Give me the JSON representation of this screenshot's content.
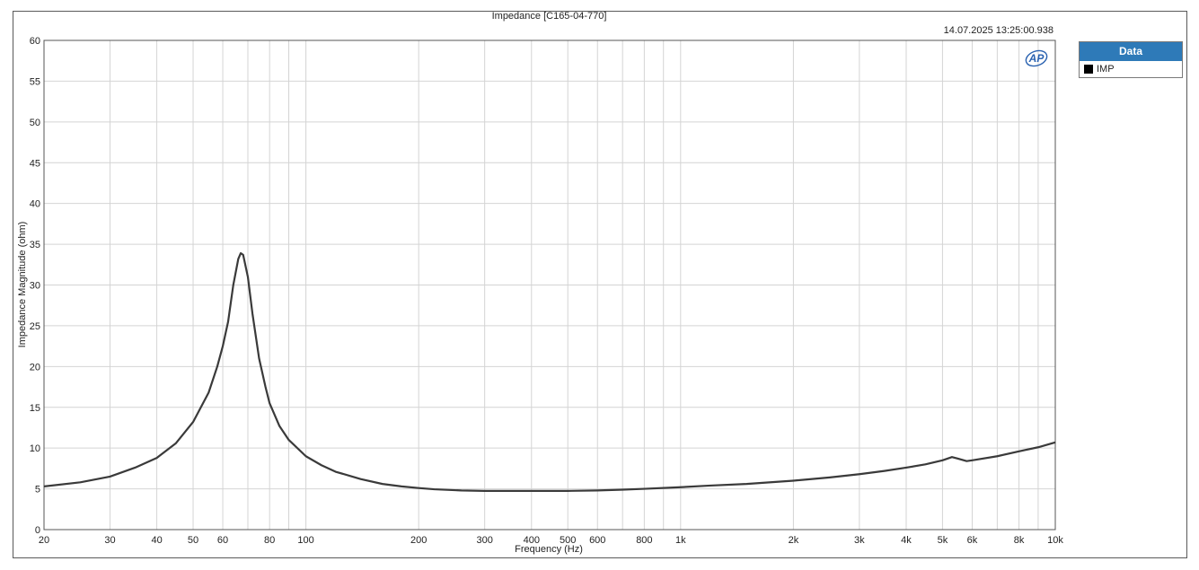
{
  "chart_data": {
    "type": "line",
    "title": "Impedance [C165-04-770]",
    "timestamp": "14.07.2025 13:25:00.938",
    "xlabel": "Frequency (Hz)",
    "ylabel": "Impedance Magnitude (ohm)",
    "xscale": "log",
    "xlim": [
      20,
      10000
    ],
    "ylim": [
      0,
      60
    ],
    "grid": true,
    "legend_title": "Data",
    "legend_position": "right",
    "x_tick_labels": [
      {
        "value": 20,
        "label": "20"
      },
      {
        "value": 30,
        "label": "30"
      },
      {
        "value": 40,
        "label": "40"
      },
      {
        "value": 50,
        "label": "50"
      },
      {
        "value": 60,
        "label": "60"
      },
      {
        "value": 80,
        "label": "80"
      },
      {
        "value": 100,
        "label": "100"
      },
      {
        "value": 200,
        "label": "200"
      },
      {
        "value": 300,
        "label": "300"
      },
      {
        "value": 400,
        "label": "400"
      },
      {
        "value": 500,
        "label": "500"
      },
      {
        "value": 600,
        "label": "600"
      },
      {
        "value": 800,
        "label": "800"
      },
      {
        "value": 1000,
        "label": "1k"
      },
      {
        "value": 2000,
        "label": "2k"
      },
      {
        "value": 3000,
        "label": "3k"
      },
      {
        "value": 4000,
        "label": "4k"
      },
      {
        "value": 5000,
        "label": "5k"
      },
      {
        "value": 6000,
        "label": "6k"
      },
      {
        "value": 8000,
        "label": "8k"
      },
      {
        "value": 10000,
        "label": "10k"
      }
    ],
    "x_grid": [
      20,
      30,
      40,
      50,
      60,
      70,
      80,
      90,
      100,
      200,
      300,
      400,
      500,
      600,
      700,
      800,
      900,
      1000,
      2000,
      3000,
      4000,
      5000,
      6000,
      7000,
      8000,
      9000,
      10000
    ],
    "y_ticks": [
      0,
      5,
      10,
      15,
      20,
      25,
      30,
      35,
      40,
      45,
      50,
      55,
      60
    ],
    "series": [
      {
        "name": "IMP",
        "color": "#3a3a3a",
        "points": [
          [
            20,
            5.3
          ],
          [
            25,
            5.8
          ],
          [
            30,
            6.5
          ],
          [
            35,
            7.6
          ],
          [
            40,
            8.8
          ],
          [
            45,
            10.6
          ],
          [
            50,
            13.2
          ],
          [
            55,
            16.8
          ],
          [
            58,
            20.0
          ],
          [
            60,
            22.5
          ],
          [
            62,
            25.5
          ],
          [
            64,
            30.0
          ],
          [
            66,
            33.2
          ],
          [
            67,
            33.9
          ],
          [
            68,
            33.7
          ],
          [
            70,
            31.0
          ],
          [
            72,
            26.5
          ],
          [
            75,
            21.0
          ],
          [
            78,
            17.5
          ],
          [
            80,
            15.5
          ],
          [
            85,
            12.7
          ],
          [
            90,
            11.0
          ],
          [
            100,
            9.0
          ],
          [
            110,
            7.9
          ],
          [
            120,
            7.1
          ],
          [
            140,
            6.2
          ],
          [
            160,
            5.6
          ],
          [
            180,
            5.3
          ],
          [
            200,
            5.1
          ],
          [
            220,
            4.95
          ],
          [
            260,
            4.8
          ],
          [
            300,
            4.75
          ],
          [
            400,
            4.75
          ],
          [
            500,
            4.75
          ],
          [
            600,
            4.8
          ],
          [
            700,
            4.9
          ],
          [
            800,
            5.0
          ],
          [
            1000,
            5.2
          ],
          [
            1200,
            5.4
          ],
          [
            1500,
            5.6
          ],
          [
            2000,
            6.0
          ],
          [
            2500,
            6.4
          ],
          [
            3000,
            6.8
          ],
          [
            3500,
            7.2
          ],
          [
            4000,
            7.6
          ],
          [
            4500,
            8.0
          ],
          [
            5000,
            8.5
          ],
          [
            5300,
            8.9
          ],
          [
            5500,
            8.7
          ],
          [
            5800,
            8.4
          ],
          [
            6000,
            8.5
          ],
          [
            7000,
            9.0
          ],
          [
            8000,
            9.6
          ],
          [
            9000,
            10.1
          ],
          [
            10000,
            10.7
          ]
        ]
      }
    ]
  },
  "legend": {
    "header": "Data",
    "items": [
      {
        "label": "IMP",
        "color": "#000000"
      }
    ]
  },
  "logo": {
    "text": "AP",
    "color": "#2a62b0"
  }
}
